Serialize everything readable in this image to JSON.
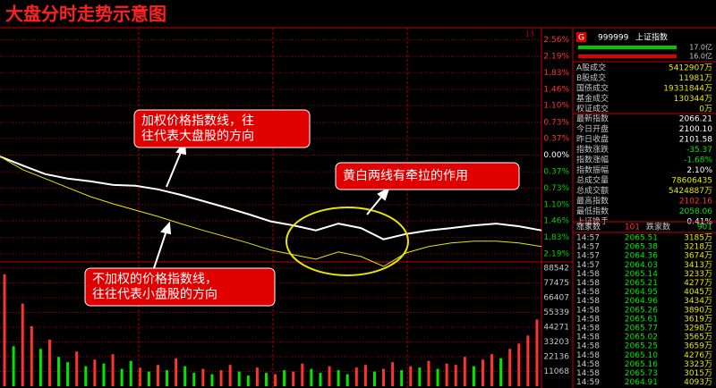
{
  "chart_data": [
    {
      "type": "line",
      "title": "大盘分时走势示意图",
      "corner_label": "13",
      "x": [
        0,
        10,
        20,
        30,
        40,
        50,
        60,
        70,
        80,
        90,
        100,
        110,
        120,
        130,
        140,
        150,
        160,
        170,
        180,
        190,
        200,
        210,
        220,
        230,
        240
      ],
      "xlim": [
        0,
        240
      ],
      "series": [
        {
          "color": "#ffffff",
          "values": [
            -0.03,
            -0.23,
            -0.42,
            -0.52,
            -0.58,
            -0.66,
            -0.68,
            -0.76,
            -0.88,
            -1.02,
            -1.16,
            -1.31,
            -1.47,
            -1.56,
            -1.67,
            -1.52,
            -1.62,
            -1.87,
            -1.75,
            -1.67,
            -1.62,
            -1.56,
            -1.52,
            -1.58,
            -1.67
          ]
        },
        {
          "color": "#e6e600",
          "values": [
            -0.03,
            -0.32,
            -0.52,
            -0.72,
            -0.92,
            -1.08,
            -1.22,
            -1.36,
            -1.52,
            -1.67,
            -1.81,
            -1.95,
            -2.11,
            -2.21,
            -2.31,
            -2.15,
            -2.25,
            -2.47,
            -2.17,
            -2.03,
            -1.95,
            -1.91,
            -1.91,
            -1.95,
            -2.03
          ]
        }
      ],
      "ylim": [
        -2.55,
        2.75
      ],
      "yticks": [
        {
          "value": 2.56,
          "label": "2.56%"
        },
        {
          "value": 2.19,
          "label": "2.19%"
        },
        {
          "value": 1.83,
          "label": "1.83%"
        },
        {
          "value": 1.46,
          "label": "1.46%"
        },
        {
          "value": 1.1,
          "label": "1.10%"
        },
        {
          "value": 0.73,
          "label": "0.73%"
        },
        {
          "value": 0.37,
          "label": "0.37%"
        },
        {
          "value": 0,
          "label": "0.00%"
        },
        {
          "value": -0.37,
          "label": "0.37%"
        },
        {
          "value": -0.73,
          "label": "0.73%"
        },
        {
          "value": -1.1,
          "label": "1.10%"
        },
        {
          "value": -1.46,
          "label": "1.46%"
        },
        {
          "value": -1.83,
          "label": "1.83%"
        },
        {
          "value": -2.19,
          "label": "2.19%"
        }
      ],
      "grid": true,
      "annotations": [
        {
          "lines": [
            "加权价格指数线，往",
            "往代表大盘股的方向"
          ]
        },
        {
          "lines": [
            "黄白两线有牵拉的作用"
          ]
        },
        {
          "lines": [
            "不加权的价格指数线，",
            "往往代表小盘股的方向"
          ]
        }
      ]
    },
    {
      "type": "bar",
      "values": [
        84000,
        30000,
        62000,
        45000,
        28000,
        35000,
        22000,
        18000,
        26000,
        15000,
        20000,
        17000,
        24000,
        13000,
        19000,
        14000,
        11000,
        16000,
        12000,
        21000,
        15000,
        10000,
        13000,
        9000,
        12000,
        16000,
        11000,
        8000,
        14000,
        10000,
        9000,
        12000,
        11000,
        17000,
        13000,
        10000,
        15000,
        12000,
        9000,
        14000,
        16000,
        11000,
        13000,
        18000,
        12000,
        15000,
        14000,
        19000,
        13000,
        17000,
        16000,
        22000,
        15000,
        20000,
        24000,
        21000,
        28000,
        32000,
        38000,
        50000
      ],
      "colors": [
        "#ff3232",
        "#00e600",
        "#ff3232",
        "#ff3232",
        "#00e600",
        "#ff3232",
        "#00e600",
        "#00e600",
        "#ff3232",
        "#00e600",
        "#ff3232",
        "#00e600",
        "#ff3232",
        "#00e600",
        "#00e600",
        "#ff3232",
        "#00e600",
        "#ff3232",
        "#00e600",
        "#ff3232",
        "#00e600",
        "#00e600",
        "#ff3232",
        "#00e600",
        "#ff3232",
        "#ff3232",
        "#00e600",
        "#00e600",
        "#ff3232",
        "#00e600",
        "#ff3232",
        "#00e600",
        "#ff3232",
        "#ff3232",
        "#00e600",
        "#00e600",
        "#ff3232",
        "#00e600",
        "#00e600",
        "#ff3232",
        "#ff3232",
        "#00e600",
        "#ff3232",
        "#ff3232",
        "#00e600",
        "#ff3232",
        "#00e600",
        "#ff3232",
        "#00e600",
        "#ff3232",
        "#ff3232",
        "#ff3232",
        "#00e600",
        "#ff3232",
        "#ff3232",
        "#00e600",
        "#ff3232",
        "#ff3232",
        "#ff3232",
        "#ff3232"
      ],
      "ylim": [
        0,
        88542
      ],
      "yticks": [
        88542,
        77475,
        66407,
        55339,
        44271,
        33203,
        22136,
        11068
      ],
      "grid": true
    }
  ],
  "panel": {
    "code_tag": "G",
    "code": "999999",
    "name": "上证指数",
    "bars": [
      "17.0亿",
      "16.0亿"
    ],
    "turnover": [
      [
        "A股成交",
        "5412907万"
      ],
      [
        "B股成交",
        "11981万"
      ],
      [
        "国债成交",
        "19331844万"
      ],
      [
        "基金成交",
        "130344万"
      ],
      [
        "权证成交",
        "0万"
      ]
    ],
    "index_stats": [
      [
        "最新指数",
        "2066.21"
      ],
      [
        "今日开盘",
        "2100.10"
      ],
      [
        "昨日收盘",
        "2101.58"
      ],
      [
        "指数涨跌",
        "-35.37"
      ],
      [
        "指数涨幅",
        "-1.68%"
      ],
      [
        "指数振幅",
        "2.10%"
      ],
      [
        "总成交量",
        "78606435"
      ],
      [
        "总成交额",
        "5424887万"
      ],
      [
        "最高指数",
        "2102.16"
      ],
      [
        "最低指数",
        "2058.06"
      ],
      [
        "上证换手",
        "0.41%"
      ]
    ],
    "index_colors": [
      "#ffffff",
      "#ffffff",
      "#ffffff",
      "#00e600",
      "#00e600",
      "#ffffff",
      "#e6e600",
      "#e6e600",
      "#ff3232",
      "#00e600",
      "#ffffff"
    ],
    "breadth": [
      "涨家数",
      "101",
      "跌家数",
      "901"
    ],
    "ticks": [
      [
        "14:57",
        "2065.51",
        "3185万"
      ],
      [
        "14:57",
        "2065.38",
        "3218万"
      ],
      [
        "14:57",
        "2064.36",
        "3674万"
      ],
      [
        "14:57",
        "2064.03",
        "3413万"
      ],
      [
        "14:58",
        "2065.14",
        "3233万"
      ],
      [
        "14:58",
        "2065.21",
        "4277万"
      ],
      [
        "14:58",
        "2064.95",
        "4045万"
      ],
      [
        "14:58",
        "2064.96",
        "3434万"
      ],
      [
        "14:58",
        "2065.26",
        "3890万"
      ],
      [
        "14:58",
        "2065.61",
        "3619万"
      ],
      [
        "14:58",
        "2065.77",
        "3298万"
      ],
      [
        "14:58",
        "2065.02",
        "3565万"
      ],
      [
        "14:58",
        "2065.25",
        "3659万"
      ],
      [
        "14:58",
        "2065.10",
        "4276万"
      ],
      [
        "14:58",
        "2065.16",
        "3323万"
      ],
      [
        "14:58",
        "2065.73",
        "3015万"
      ],
      [
        "14:59",
        "2064.91",
        "4093万"
      ]
    ]
  }
}
